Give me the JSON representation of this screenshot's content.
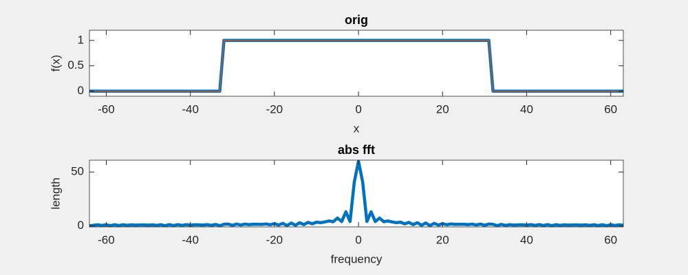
{
  "chart_data": [
    {
      "type": "line",
      "title": "orig",
      "xlabel": "x",
      "ylabel": "f(x)",
      "x": [
        -64,
        -33,
        -32,
        31,
        32,
        63
      ],
      "series": [
        {
          "color": "#0072bd",
          "line_width": 4.5,
          "values": [
            0,
            0,
            1,
            1,
            0,
            0
          ]
        },
        {
          "color": "#d95319",
          "line_width": 1.2,
          "values": [
            0,
            0,
            1,
            1,
            0,
            0
          ]
        }
      ],
      "xlim": [
        -64,
        63
      ],
      "ylim": [
        -0.1,
        1.2
      ],
      "xticks": [
        -60,
        -40,
        -20,
        0,
        20,
        40,
        60
      ],
      "yticks": [
        0,
        0.5,
        1
      ],
      "grid": false
    },
    {
      "type": "line",
      "title": "abs fft",
      "xlabel": "frequency",
      "ylabel": "length",
      "x": [
        -64,
        -63,
        -62,
        -61,
        -60,
        -59,
        -58,
        -57,
        -56,
        -55,
        -54,
        -53,
        -52,
        -51,
        -50,
        -49,
        -48,
        -47,
        -46,
        -45,
        -44,
        -43,
        -42,
        -41,
        -40,
        -39,
        -38,
        -37,
        -36,
        -35,
        -34,
        -33,
        -32,
        -31,
        -30,
        -29,
        -28,
        -27,
        -26,
        -25,
        -24,
        -23,
        -22,
        -21,
        -20,
        -19,
        -18,
        -17,
        -16,
        -15,
        -14,
        -13,
        -12,
        -11,
        -10,
        -9,
        -8,
        -7,
        -6,
        -5,
        -4,
        -3,
        -2,
        -1,
        0,
        1,
        2,
        3,
        4,
        5,
        6,
        7,
        8,
        9,
        10,
        11,
        12,
        13,
        14,
        15,
        16,
        17,
        18,
        19,
        20,
        21,
        22,
        23,
        24,
        25,
        26,
        27,
        28,
        29,
        30,
        31,
        32,
        33,
        34,
        35,
        36,
        37,
        38,
        39,
        40,
        41,
        42,
        43,
        44,
        45,
        46,
        47,
        48,
        49,
        50,
        51,
        52,
        53,
        54,
        55,
        56,
        57,
        58,
        59,
        60,
        61,
        62,
        63
      ],
      "series": [
        {
          "color": "#0072bd",
          "line_width": 4.5,
          "values": [
            0,
            0.5,
            0.9,
            0.3,
            1,
            0.1,
            1,
            0.2,
            1,
            0.4,
            0.9,
            0.6,
            0.8,
            0.8,
            0.6,
            0.9,
            0.4,
            1,
            0.1,
            1.1,
            0.2,
            1.1,
            0.4,
            1.1,
            0.6,
            1,
            0.9,
            0.7,
            1.1,
            0.4,
            1.3,
            0.1,
            1.4,
            1.6,
            0.5,
            1.6,
            0.8,
            1.6,
            1.1,
            1.5,
            1.4,
            1.3,
            1.7,
            1,
            2,
            0.7,
            2.3,
            0.2,
            2.6,
            0.5,
            2.9,
            1.1,
            3.2,
            1.8,
            3.4,
            2.9,
            3.6,
            4.5,
            3.8,
            7.2,
            3.9,
            13,
            4,
            40.6,
            60,
            40.6,
            4,
            13,
            3.9,
            7.2,
            3.8,
            4.5,
            3.6,
            2.9,
            3.4,
            1.8,
            3.2,
            1.1,
            2.9,
            0.5,
            2.6,
            0.2,
            2.3,
            0.7,
            2,
            1,
            1.7,
            1.3,
            1.4,
            1.5,
            1.1,
            1.6,
            0.8,
            1.6,
            0.5,
            1.6,
            1.4,
            0.1,
            1.3,
            0.4,
            1.1,
            0.7,
            0.9,
            1,
            0.6,
            1.1,
            0.4,
            1.1,
            0.2,
            1.1,
            0.1,
            1,
            0.4,
            0.9,
            0.6,
            0.8,
            0.8,
            0.6,
            0.9,
            0.4,
            1,
            0.2,
            1,
            0.1,
            1,
            0.3,
            0.9,
            0.5
          ]
        }
      ],
      "xlim": [
        -64,
        63
      ],
      "ylim": [
        -1,
        61
      ],
      "xticks": [
        -60,
        -40,
        -20,
        0,
        20,
        40,
        60
      ],
      "yticks": [
        0,
        50
      ],
      "grid": false
    }
  ]
}
